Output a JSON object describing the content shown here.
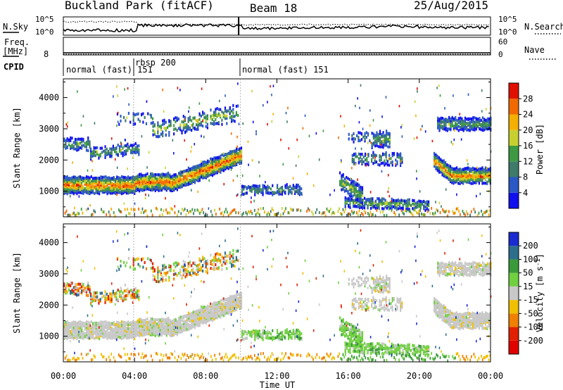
{
  "header": {
    "station": "Buckland Park (fitACF)",
    "beam": "Beam 18",
    "date": "25/Aug/2015"
  },
  "noise_panel": {
    "left_label": "N.Sky",
    "right_label": "N.Search",
    "left_ticks": [
      "10^5",
      "10^0"
    ],
    "right_ticks": [
      "10^5",
      "10^0"
    ],
    "right_line_style": "dotted"
  },
  "freq_panel": {
    "left_label_1": "Freq.",
    "left_label_2": "[MHz]",
    "left_tick": "8",
    "right_ticks": [
      "60",
      "0"
    ],
    "right_label": "Nave",
    "right_line_style": "dotted"
  },
  "cpid": {
    "label": "CPID",
    "segments": [
      {
        "text": "normal (fast) 151"
      },
      {
        "text": "rbsp 200"
      },
      {
        "text": "normal (fast) 151"
      }
    ]
  },
  "chart_data": [
    {
      "type": "heatmap",
      "name": "power",
      "ylabel": "Slant Range [km]",
      "yticks": [
        "1000",
        "2000",
        "3000",
        "4000"
      ],
      "ylim_km": [
        180,
        4600
      ],
      "xlim_hours": [
        0,
        24
      ],
      "colorbar": {
        "label": "Power [dB]",
        "ticks": [
          "4",
          "8",
          "12",
          "16",
          "20",
          "24",
          "28"
        ],
        "colors": [
          "#1010ee",
          "#2a58c4",
          "#3f7a6a",
          "#3d9a43",
          "#c8d030",
          "#f4b000",
          "#f06a00",
          "#e01000"
        ]
      },
      "features": [
        {
          "desc_start_h": 0,
          "desc_end_h": 10,
          "range_km_approx": 1300,
          "power_db": 28
        }
      ]
    },
    {
      "type": "heatmap",
      "name": "velocity",
      "ylabel": "Slant Range [km]",
      "yticks": [
        "1000",
        "2000",
        "3000",
        "4000"
      ],
      "ylim_km": [
        180,
        4600
      ],
      "xlim_hours": [
        0,
        24
      ],
      "colorbar": {
        "label": "Velocity [m s^-1]",
        "ticks": [
          "200",
          "100",
          "50",
          "15",
          "-15",
          "-50",
          "-100",
          "-200"
        ],
        "colors": [
          "#1a2bd0",
          "#2d6e8c",
          "#3a9a3a",
          "#70d040",
          "#c8c8c8",
          "#f0c000",
          "#f08000",
          "#e02000",
          "#e00000"
        ]
      }
    }
  ],
  "xaxis": {
    "label": "Time UT",
    "ticks": [
      "00:00",
      "04:00",
      "08:00",
      "12:00",
      "16:00",
      "20:00",
      "00:00"
    ]
  },
  "colors": {
    "power_strong": "#e01000",
    "velocity_grey": "#c8c8c8"
  }
}
